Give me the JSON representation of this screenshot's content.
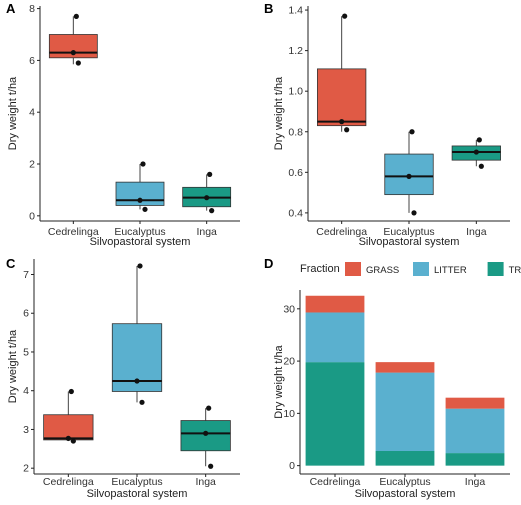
{
  "colors": {
    "cedrelinga": "#E05A45",
    "eucalyptus": "#5AB0CF",
    "inga": "#1A9A85",
    "grass": "#E05A45",
    "litter": "#5AB0CF",
    "tree": "#1A9A85"
  },
  "chart_data": [
    {
      "panel": "A",
      "type": "box",
      "xlabel": "Silvopastoral system",
      "ylabel": "Dry weight t/ha",
      "ylim": [
        -0.2,
        8.1
      ],
      "yticks": [
        "0",
        "2",
        "4",
        "6",
        "8"
      ],
      "categories": [
        "Cedrelinga",
        "Eucalyptus",
        "Inga"
      ],
      "boxes": [
        {
          "name": "Cedrelinga",
          "min": 5.85,
          "q1": 6.1,
          "median": 6.3,
          "q3": 7.0,
          "max": 7.7,
          "points": [
            7.7,
            6.3,
            5.9
          ]
        },
        {
          "name": "Eucalyptus",
          "min": 0.25,
          "q1": 0.4,
          "median": 0.6,
          "q3": 1.3,
          "max": 2.0,
          "points": [
            2.0,
            0.6,
            0.25
          ]
        },
        {
          "name": "Inga",
          "min": 0.2,
          "q1": 0.35,
          "median": 0.7,
          "q3": 1.1,
          "max": 1.6,
          "points": [
            1.6,
            0.7,
            0.2
          ]
        }
      ]
    },
    {
      "panel": "B",
      "type": "box",
      "xlabel": "Silvopastoral system",
      "ylabel": "Dry weight t/ha",
      "ylim": [
        0.36,
        1.42
      ],
      "yticks": [
        "0.4",
        "0.6",
        "0.8",
        "1.0",
        "1.2",
        "1.4"
      ],
      "categories": [
        "Cedrelinga",
        "Eucalyptus",
        "Inga"
      ],
      "boxes": [
        {
          "name": "Cedrelinga",
          "min": 0.8,
          "q1": 0.83,
          "median": 0.85,
          "q3": 1.11,
          "max": 1.37,
          "points": [
            1.37,
            0.85,
            0.81
          ]
        },
        {
          "name": "Eucalyptus",
          "min": 0.4,
          "q1": 0.49,
          "median": 0.58,
          "q3": 0.69,
          "max": 0.8,
          "points": [
            0.8,
            0.58,
            0.4
          ]
        },
        {
          "name": "Inga",
          "min": 0.63,
          "q1": 0.66,
          "median": 0.7,
          "q3": 0.73,
          "max": 0.76,
          "points": [
            0.76,
            0.7,
            0.63
          ]
        }
      ]
    },
    {
      "panel": "C",
      "type": "box",
      "xlabel": "Silvopastoral system",
      "ylabel": "Dry weight t/ha",
      "ylim": [
        1.85,
        7.4
      ],
      "yticks": [
        "2",
        "3",
        "4",
        "5",
        "6",
        "7"
      ],
      "categories": [
        "Cedrelinga",
        "Eucalyptus",
        "Inga"
      ],
      "boxes": [
        {
          "name": "Cedrelinga",
          "min": 2.7,
          "q1": 2.73,
          "median": 2.77,
          "q3": 3.38,
          "max": 3.98,
          "points": [
            3.98,
            2.77,
            2.7
          ]
        },
        {
          "name": "Eucalyptus",
          "min": 3.7,
          "q1": 3.98,
          "median": 4.25,
          "q3": 5.73,
          "max": 7.22,
          "points": [
            7.22,
            4.25,
            3.7
          ]
        },
        {
          "name": "Inga",
          "min": 2.05,
          "q1": 2.45,
          "median": 2.9,
          "q3": 3.23,
          "max": 3.55,
          "points": [
            3.55,
            2.9,
            2.05
          ]
        }
      ]
    },
    {
      "panel": "D",
      "type": "bar",
      "stacked": true,
      "xlabel": "Silvopastoral system",
      "ylabel": "Dry weight t/ha",
      "ylim": [
        -1.6,
        33.6
      ],
      "yticks": [
        "0",
        "10",
        "20",
        "30"
      ],
      "categories": [
        "Cedrelinga",
        "Eucalyptus",
        "Inga"
      ],
      "legend_title": "Fraction",
      "series": [
        {
          "name": "TREE",
          "values": [
            19.8,
            2.8,
            2.4
          ]
        },
        {
          "name": "LITTER",
          "values": [
            9.5,
            15.0,
            8.5
          ]
        },
        {
          "name": "GRASS",
          "values": [
            3.2,
            2.0,
            2.1
          ]
        }
      ],
      "legend_order": [
        "GRASS",
        "LITTER",
        "TREE"
      ]
    }
  ]
}
